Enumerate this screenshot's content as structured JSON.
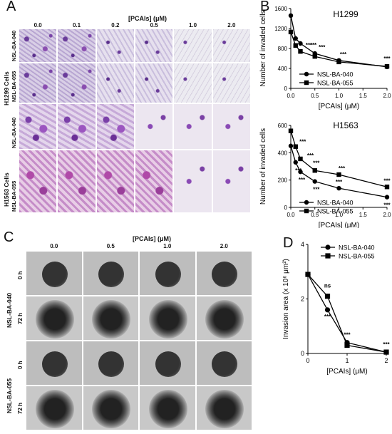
{
  "panels": {
    "A": "A",
    "B": "B",
    "C": "C",
    "D": "D"
  },
  "panelA": {
    "header": "[PCAIs] (μM)",
    "columns": [
      "0.0",
      "0.1",
      "0.2",
      "0.5",
      "1.0",
      "2.0"
    ],
    "groups": [
      "H1299 Cells",
      "H1563 Cells"
    ],
    "rows": [
      "NSL-BA-040",
      "NSL-BA-055",
      "NSL-BA-040",
      "NSL-BA-055"
    ]
  },
  "panelC": {
    "header": "[PCAIs] (μM)",
    "columns": [
      "0.0",
      "0.5",
      "1.0",
      "2.0"
    ],
    "groups": [
      "NSL-BA-040",
      "NSL-BA-055"
    ],
    "times": [
      "0 h",
      "72 h",
      "0 h",
      "72 h"
    ]
  },
  "chart_data": [
    {
      "type": "line",
      "title": "H1299",
      "xlabel": "[PCAIs] (μM)",
      "ylabel": "Number of invaded cells",
      "xlim": [
        0,
        2
      ],
      "ylim": [
        0,
        1600
      ],
      "xticks": [
        "0.0",
        "0.5",
        "1.0",
        "1.5",
        "2.0"
      ],
      "yticks": [
        "0",
        "400",
        "800",
        "1200",
        "1600"
      ],
      "legend": "lower-left",
      "significance": [
        "***",
        "***",
        "***",
        "***",
        "***"
      ],
      "series": [
        {
          "name": "NSL-BA-040",
          "marker": "circle",
          "x": [
            0,
            0.1,
            0.2,
            0.5,
            1.0,
            2.0
          ],
          "y": [
            1460,
            1000,
            900,
            700,
            560,
            430
          ]
        },
        {
          "name": "NSL-BA-055",
          "marker": "square",
          "x": [
            0,
            0.1,
            0.2,
            0.5,
            1.0,
            2.0
          ],
          "y": [
            1130,
            860,
            740,
            640,
            530,
            440
          ]
        }
      ]
    },
    {
      "type": "line",
      "title": "H1563",
      "xlabel": "[PCAIs] (μM)",
      "ylabel": "Number of invaded cells",
      "xlim": [
        0,
        2
      ],
      "ylim": [
        0,
        600
      ],
      "xticks": [
        "0.0",
        "0.5",
        "1.0",
        "1.5",
        "2.0"
      ],
      "yticks": [
        "0",
        "200",
        "400",
        "600"
      ],
      "legend": "lower-left",
      "significance": [
        "***",
        "***",
        "***",
        "***",
        "***",
        "***",
        "***",
        "***",
        "***",
        "***"
      ],
      "series": [
        {
          "name": "NSL-BA-040",
          "marker": "circle",
          "x": [
            0,
            0.1,
            0.2,
            0.5,
            1.0,
            2.0
          ],
          "y": [
            450,
            330,
            260,
            190,
            140,
            75
          ]
        },
        {
          "name": "NSL-BA-055",
          "marker": "square",
          "x": [
            0,
            0.1,
            0.2,
            0.5,
            1.0,
            2.0
          ],
          "y": [
            560,
            445,
            355,
            270,
            240,
            150
          ]
        }
      ]
    },
    {
      "type": "line",
      "title": "",
      "xlabel": "[PCAIs] (μM)",
      "ylabel": "Invasion area (x 10⁶ μm²)",
      "xlim": [
        0,
        2
      ],
      "ylim": [
        0,
        4
      ],
      "xticks": [
        "0",
        "1",
        "2"
      ],
      "yticks": [
        "0",
        "2",
        "4"
      ],
      "legend": "top-right",
      "significance": [
        "ns",
        "***",
        "***",
        "***"
      ],
      "series": [
        {
          "name": "NSL-BA-040",
          "marker": "circle",
          "x": [
            0,
            0.5,
            1.0,
            2.0
          ],
          "y": [
            2.9,
            1.6,
            0.4,
            0.05
          ]
        },
        {
          "name": "NSL-BA-055",
          "marker": "square",
          "x": [
            0,
            0.5,
            1.0,
            2.0
          ],
          "y": [
            2.9,
            2.1,
            0.3,
            0.05
          ]
        }
      ]
    }
  ]
}
